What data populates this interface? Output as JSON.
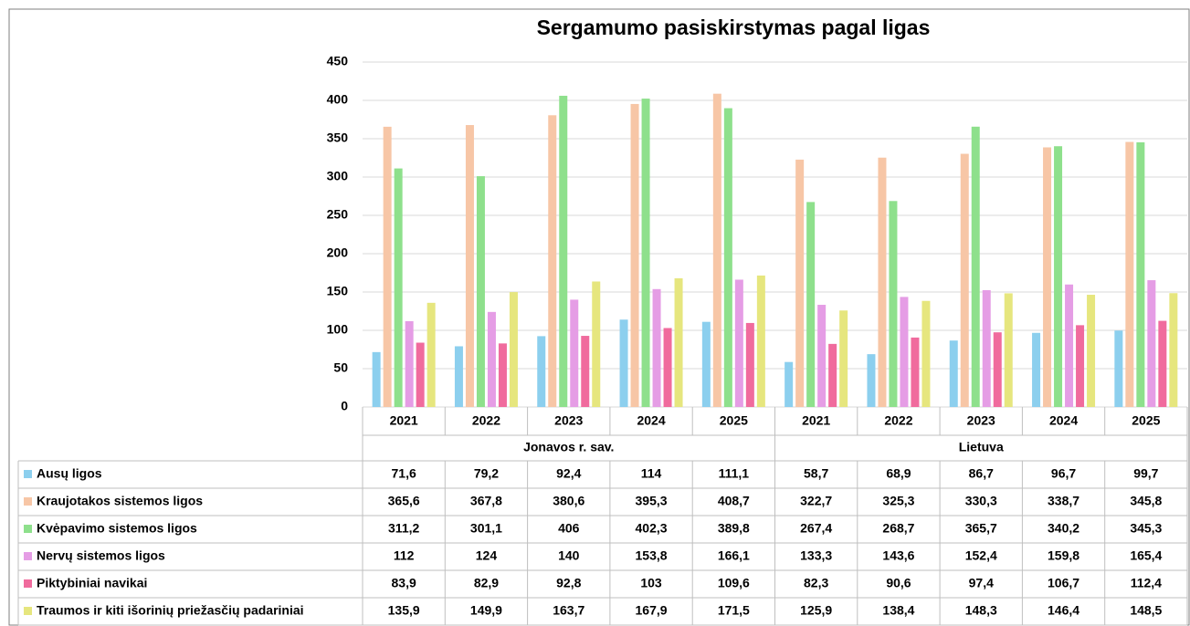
{
  "chart_data": {
    "type": "bar",
    "title": "Sergamumo pasiskirstymas pagal ligas",
    "groups": [
      {
        "label": "Jonavos r. sav.",
        "categories": [
          "2021",
          "2022",
          "2023",
          "2024",
          "2025"
        ]
      },
      {
        "label": "Lietuva",
        "categories": [
          "2021",
          "2022",
          "2023",
          "2024",
          "2025"
        ]
      }
    ],
    "ylim": [
      0,
      450
    ],
    "yticks": [
      0,
      50,
      100,
      150,
      200,
      250,
      300,
      350,
      400,
      450
    ],
    "grid": true,
    "legend": "table",
    "series": [
      {
        "name": "Ausų ligos",
        "color": "#8ccfee",
        "values": [
          71.6,
          79.2,
          92.4,
          114,
          111.1,
          58.7,
          68.9,
          86.7,
          96.7,
          99.7
        ],
        "value_labels": [
          "71,6",
          "79,2",
          "92,4",
          "114",
          "111,1",
          "58,7",
          "68,9",
          "86,7",
          "96,7",
          "99,7"
        ]
      },
      {
        "name": "Kraujotakos sistemos ligos",
        "color": "#f7c6a6",
        "values": [
          365.6,
          367.8,
          380.6,
          395.3,
          408.7,
          322.7,
          325.3,
          330.3,
          338.7,
          345.8
        ],
        "value_labels": [
          "365,6",
          "367,8",
          "380,6",
          "395,3",
          "408,7",
          "322,7",
          "325,3",
          "330,3",
          "338,7",
          "345,8"
        ]
      },
      {
        "name": "Kvėpavimo sistemos ligos",
        "color": "#8ee08c",
        "values": [
          311.2,
          301.1,
          406,
          402.3,
          389.8,
          267.4,
          268.7,
          365.7,
          340.2,
          345.3
        ],
        "value_labels": [
          "311,2",
          "301,1",
          "406",
          "402,3",
          "389,8",
          "267,4",
          "268,7",
          "365,7",
          "340,2",
          "345,3"
        ]
      },
      {
        "name": "Nervų sistemos ligos",
        "color": "#e59de5",
        "values": [
          112,
          124,
          140,
          153.8,
          166.1,
          133.3,
          143.6,
          152.4,
          159.8,
          165.4
        ],
        "value_labels": [
          "112",
          "124",
          "140",
          "153,8",
          "166,1",
          "133,3",
          "143,6",
          "152,4",
          "159,8",
          "165,4"
        ]
      },
      {
        "name": "Piktybiniai navikai",
        "color": "#f06b9d",
        "values": [
          83.9,
          82.9,
          92.8,
          103,
          109.6,
          82.3,
          90.6,
          97.4,
          106.7,
          112.4
        ],
        "value_labels": [
          "83,9",
          "82,9",
          "92,8",
          "103",
          "109,6",
          "82,3",
          "90,6",
          "97,4",
          "106,7",
          "112,4"
        ]
      },
      {
        "name": "Traumos ir kiti išorinių priežasčių padariniai",
        "color": "#e6e67e",
        "values": [
          135.9,
          149.9,
          163.7,
          167.9,
          171.5,
          125.9,
          138.4,
          148.3,
          146.4,
          148.5
        ],
        "value_labels": [
          "135,9",
          "149,9",
          "163,7",
          "167,9",
          "171,5",
          "125,9",
          "138,4",
          "148,3",
          "146,4",
          "148,5"
        ]
      }
    ]
  }
}
